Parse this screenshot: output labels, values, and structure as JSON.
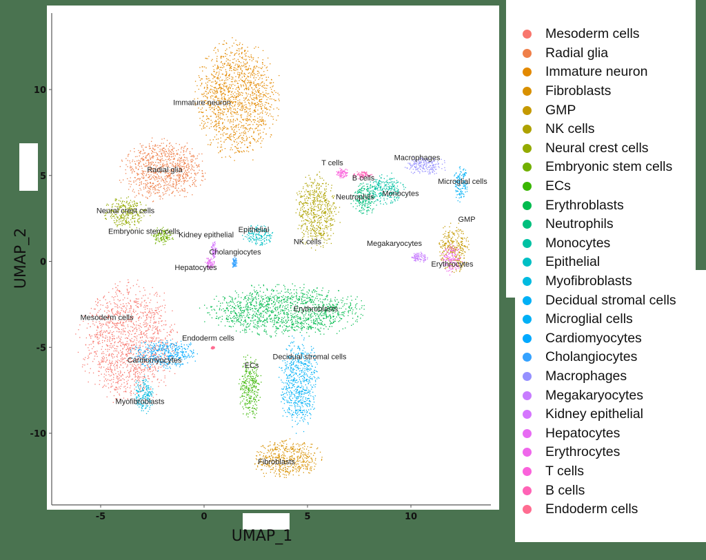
{
  "chart_data": {
    "type": "scatter",
    "title": "",
    "xlabel": "UMAP_1",
    "ylabel": "UMAP_2",
    "xlim": [
      -7.5,
      14
    ],
    "ylim": [
      -14,
      14
    ],
    "x_ticks": [
      -5,
      0,
      5,
      10
    ],
    "y_ticks": [
      -10,
      -5,
      0,
      5,
      10
    ],
    "grid": false,
    "legend_position": "right",
    "series": [
      {
        "name": "Mesoderm cells",
        "color": "#F8766D",
        "label_xy": [
          -4.7,
          -3.4
        ],
        "extent": {
          "x": [
            -6.3,
            -1.0
          ],
          "y": [
            -8.5,
            -0.8
          ]
        }
      },
      {
        "name": "Radial glia",
        "color": "#EF7F49",
        "label_xy": [
          -1.9,
          5.2
        ],
        "extent": {
          "x": [
            -4.3,
            0.3
          ],
          "y": [
            3.3,
            7.3
          ]
        }
      },
      {
        "name": "Immature neuron",
        "color": "#E38900",
        "label_xy": [
          -0.1,
          9.1
        ],
        "extent": {
          "x": [
            -0.7,
            3.8
          ],
          "y": [
            5.6,
            13.2
          ]
        }
      },
      {
        "name": "Fibroblasts",
        "color": "#D89000",
        "label_xy": [
          3.5,
          -11.8
        ],
        "extent": {
          "x": [
            2.2,
            5.8
          ],
          "y": [
            -12.8,
            -10.1
          ]
        }
      },
      {
        "name": "GMP",
        "color": "#C59900",
        "label_xy": [
          12.7,
          2.3
        ],
        "extent": {
          "x": [
            11.2,
            12.9
          ],
          "y": [
            -0.8,
            2.4
          ]
        }
      },
      {
        "name": "NK cells",
        "color": "#AEA200",
        "label_xy": [
          5.0,
          1.0
        ],
        "extent": {
          "x": [
            4.2,
            6.6
          ],
          "y": [
            0.5,
            5.3
          ]
        }
      },
      {
        "name": "Neural crest cells",
        "color": "#93AA00",
        "label_xy": [
          -3.8,
          2.8
        ],
        "extent": {
          "x": [
            -5.0,
            -2.6
          ],
          "y": [
            1.8,
            3.9
          ]
        }
      },
      {
        "name": "Embryonic stem cells",
        "color": "#72B000",
        "label_xy": [
          -2.9,
          1.6
        ],
        "extent": {
          "x": [
            -2.6,
            -1.4
          ],
          "y": [
            0.9,
            2.1
          ]
        }
      },
      {
        "name": "ECs",
        "color": "#39B600",
        "label_xy": [
          2.3,
          -6.2
        ],
        "extent": {
          "x": [
            1.6,
            2.8
          ],
          "y": [
            -9.5,
            -5.2
          ]
        }
      },
      {
        "name": "Erythroblasts",
        "color": "#00BB4E",
        "label_xy": [
          5.4,
          -2.9
        ],
        "extent": {
          "x": [
            -0.5,
            8.2
          ],
          "y": [
            -4.5,
            -1.2
          ]
        }
      },
      {
        "name": "Neutrophils",
        "color": "#00BF7D",
        "label_xy": [
          7.3,
          3.6
        ],
        "extent": {
          "x": [
            7.0,
            8.5
          ],
          "y": [
            2.6,
            4.8
          ]
        }
      },
      {
        "name": "Monocytes",
        "color": "#00C1A3",
        "label_xy": [
          9.5,
          3.8
        ],
        "extent": {
          "x": [
            7.8,
            9.8
          ],
          "y": [
            3.2,
            5.3
          ]
        }
      },
      {
        "name": "Epithelial",
        "color": "#00BFC4",
        "label_xy": [
          2.4,
          1.7
        ],
        "extent": {
          "x": [
            1.8,
            3.4
          ],
          "y": [
            0.8,
            2.3
          ]
        }
      },
      {
        "name": "Myofibroblasts",
        "color": "#00BAE0",
        "label_xy": [
          -3.1,
          -8.3
        ],
        "extent": {
          "x": [
            -3.5,
            -2.4
          ],
          "y": [
            -8.9,
            -6.6
          ]
        }
      },
      {
        "name": "Decidual stromal cells",
        "color": "#00B0F6",
        "label_xy": [
          5.1,
          -5.7
        ],
        "extent": {
          "x": [
            3.5,
            5.6
          ],
          "y": [
            -10.1,
            -4.0
          ]
        }
      },
      {
        "name": "Microglial cells",
        "color": "#00B0F6",
        "label_xy": [
          12.5,
          4.5
        ],
        "extent": {
          "x": [
            12.0,
            12.8
          ],
          "y": [
            3.4,
            5.6
          ]
        }
      },
      {
        "name": "Cardiomyocytes",
        "color": "#00A9FF",
        "label_xy": [
          -2.4,
          -5.9
        ],
        "extent": {
          "x": [
            -3.9,
            -0.1
          ],
          "y": [
            -6.4,
            -4.4
          ]
        }
      },
      {
        "name": "Cholangiocytes",
        "color": "#35A2FF",
        "label_xy": [
          1.5,
          0.4
        ],
        "extent": {
          "x": [
            1.3,
            1.6
          ],
          "y": [
            -0.4,
            0.3
          ]
        }
      },
      {
        "name": "Macrophages",
        "color": "#9590FF",
        "label_xy": [
          10.3,
          5.9
        ],
        "extent": {
          "x": [
            9.5,
            11.8
          ],
          "y": [
            5.0,
            6.2
          ]
        }
      },
      {
        "name": "Megakaryocytes",
        "color": "#C77CFF",
        "label_xy": [
          9.2,
          0.9
        ],
        "extent": {
          "x": [
            9.9,
            10.9
          ],
          "y": [
            -0.1,
            0.6
          ]
        }
      },
      {
        "name": "Kidney epithelial",
        "color": "#D575FE",
        "label_xy": [
          0.1,
          1.4
        ],
        "extent": {
          "x": [
            0.3,
            0.6
          ],
          "y": [
            0.1,
            1.3
          ]
        }
      },
      {
        "name": "Hepatocytes",
        "color": "#E76BF3",
        "label_xy": [
          -0.4,
          -0.5
        ],
        "extent": {
          "x": [
            0.0,
            0.5
          ],
          "y": [
            -0.5,
            0.3
          ]
        }
      },
      {
        "name": "Erythrocytes",
        "color": "#EF67EB",
        "label_xy": [
          12.0,
          -0.3
        ],
        "extent": {
          "x": [
            11.4,
            12.5
          ],
          "y": [
            -0.8,
            1.1
          ]
        }
      },
      {
        "name": "T cells",
        "color": "#FA62DB",
        "label_xy": [
          6.2,
          5.6
        ],
        "extent": {
          "x": [
            6.3,
            7.0
          ],
          "y": [
            4.8,
            5.5
          ]
        }
      },
      {
        "name": "B cells",
        "color": "#FF63B6",
        "label_xy": [
          7.7,
          4.7
        ],
        "extent": {
          "x": [
            7.1,
            8.2
          ],
          "y": [
            4.8,
            5.3
          ]
        }
      },
      {
        "name": "Endoderm cells",
        "color": "#FF6C91",
        "label_xy": [
          0.2,
          -4.6
        ],
        "extent": {
          "x": [
            0.3,
            0.5
          ],
          "y": [
            -5.1,
            -4.9
          ]
        }
      }
    ]
  },
  "axes": {
    "xlabel": "UMAP_1",
    "ylabel": "UMAP_2",
    "x_ticks": [
      "-5",
      "0",
      "5",
      "10"
    ],
    "y_ticks": [
      "10",
      "5",
      "0",
      "-5",
      "-10"
    ]
  },
  "colors": {
    "background": "#4a7350",
    "panel": "#ffffff",
    "axis": "#555555"
  }
}
